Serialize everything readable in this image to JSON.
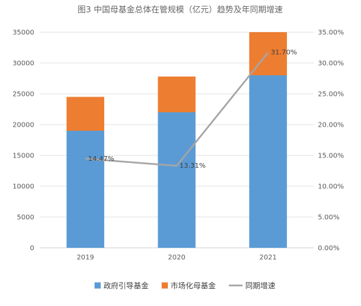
{
  "chart_data": {
    "type": "bar",
    "title": "图3 中国母基金总体在管规模（亿元）趋势及年同期增速",
    "categories": [
      "2019",
      "2020",
      "2021"
    ],
    "series": [
      {
        "name": "政府引导基金",
        "kind": "stacked-bar",
        "axis": "left",
        "color": "#5b9bd5",
        "values": [
          19000,
          22000,
          28000
        ]
      },
      {
        "name": "市场化母基金",
        "kind": "stacked-bar",
        "axis": "left",
        "color": "#ed7d31",
        "values": [
          5500,
          5800,
          7000
        ]
      },
      {
        "name": "同期增速",
        "kind": "line",
        "axis": "right",
        "color": "#a5a5a5",
        "values": [
          14.47,
          13.31,
          31.7
        ],
        "labels": [
          "14.47%",
          "13.31%",
          "31.70%"
        ]
      }
    ],
    "y_left": {
      "min": 0,
      "max": 35000,
      "step": 5000,
      "tick_labels": [
        "0",
        "5000",
        "10000",
        "15000",
        "20000",
        "25000",
        "30000",
        "35000"
      ]
    },
    "y_right": {
      "min": 0,
      "max": 35,
      "step": 5,
      "tick_labels": [
        "0.00%",
        "5.00%",
        "10.00%",
        "15.00%",
        "20.00%",
        "25.00%",
        "30.00%",
        "35.00%"
      ]
    },
    "grid": true,
    "legend_position": "bottom"
  }
}
